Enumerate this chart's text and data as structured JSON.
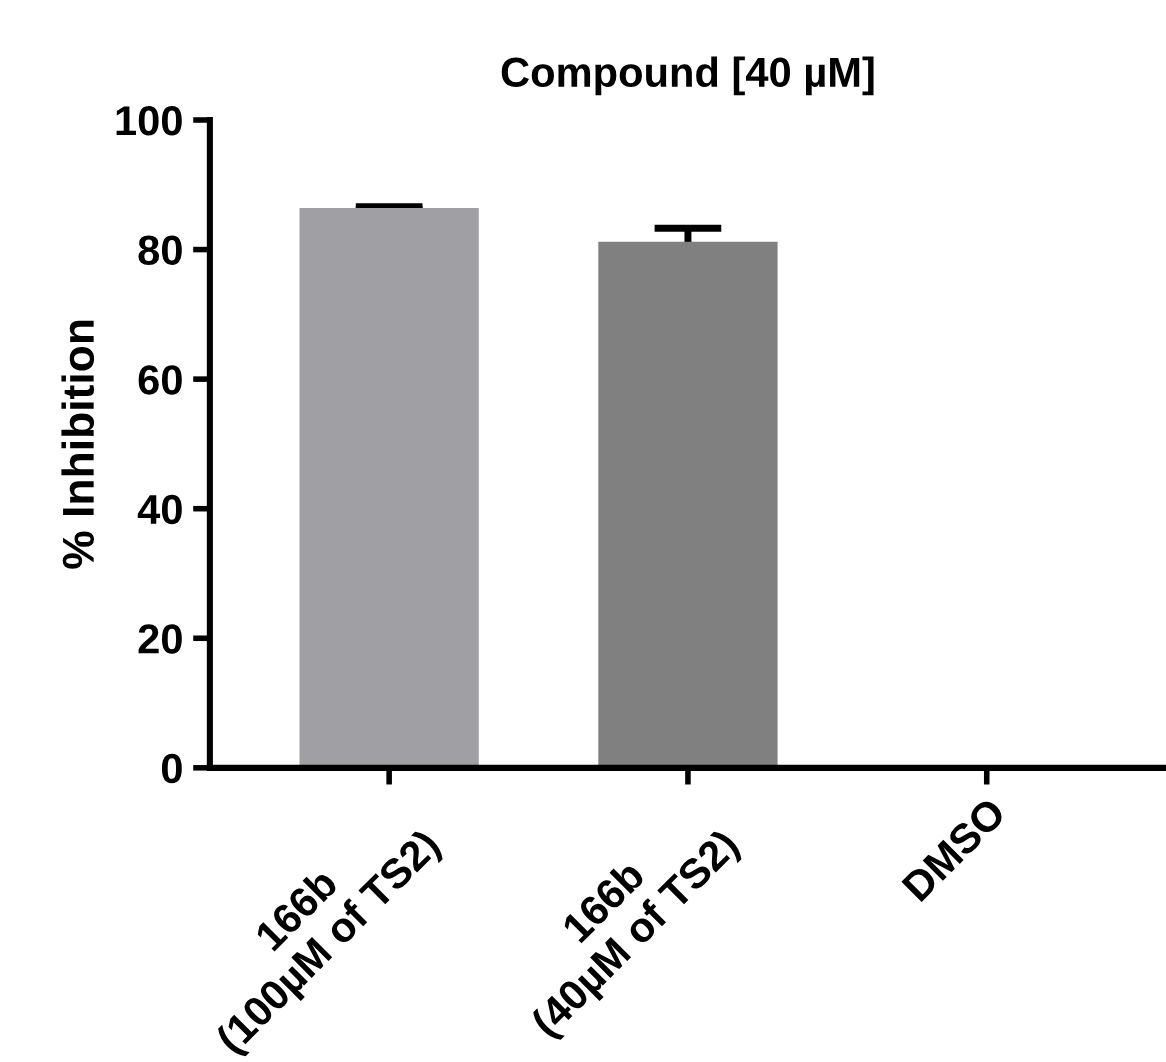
{
  "chart_data": {
    "type": "bar",
    "title": "Compound [40 µM]",
    "ylabel": "% Inhibition",
    "categories": [
      "166b\n(100µM of TS2)",
      "166b\n(40µM of TS2)",
      "DMSO"
    ],
    "values": [
      86.4,
      81.2,
      0
    ],
    "colors": [
      "#a09fa3",
      "#808080",
      "#808080"
    ],
    "errors": [
      0.2,
      2.1,
      null
    ],
    "ylim": [
      0,
      100
    ],
    "yticks": [
      0,
      20,
      40,
      60,
      80,
      100
    ],
    "grid": false,
    "legend": false
  }
}
